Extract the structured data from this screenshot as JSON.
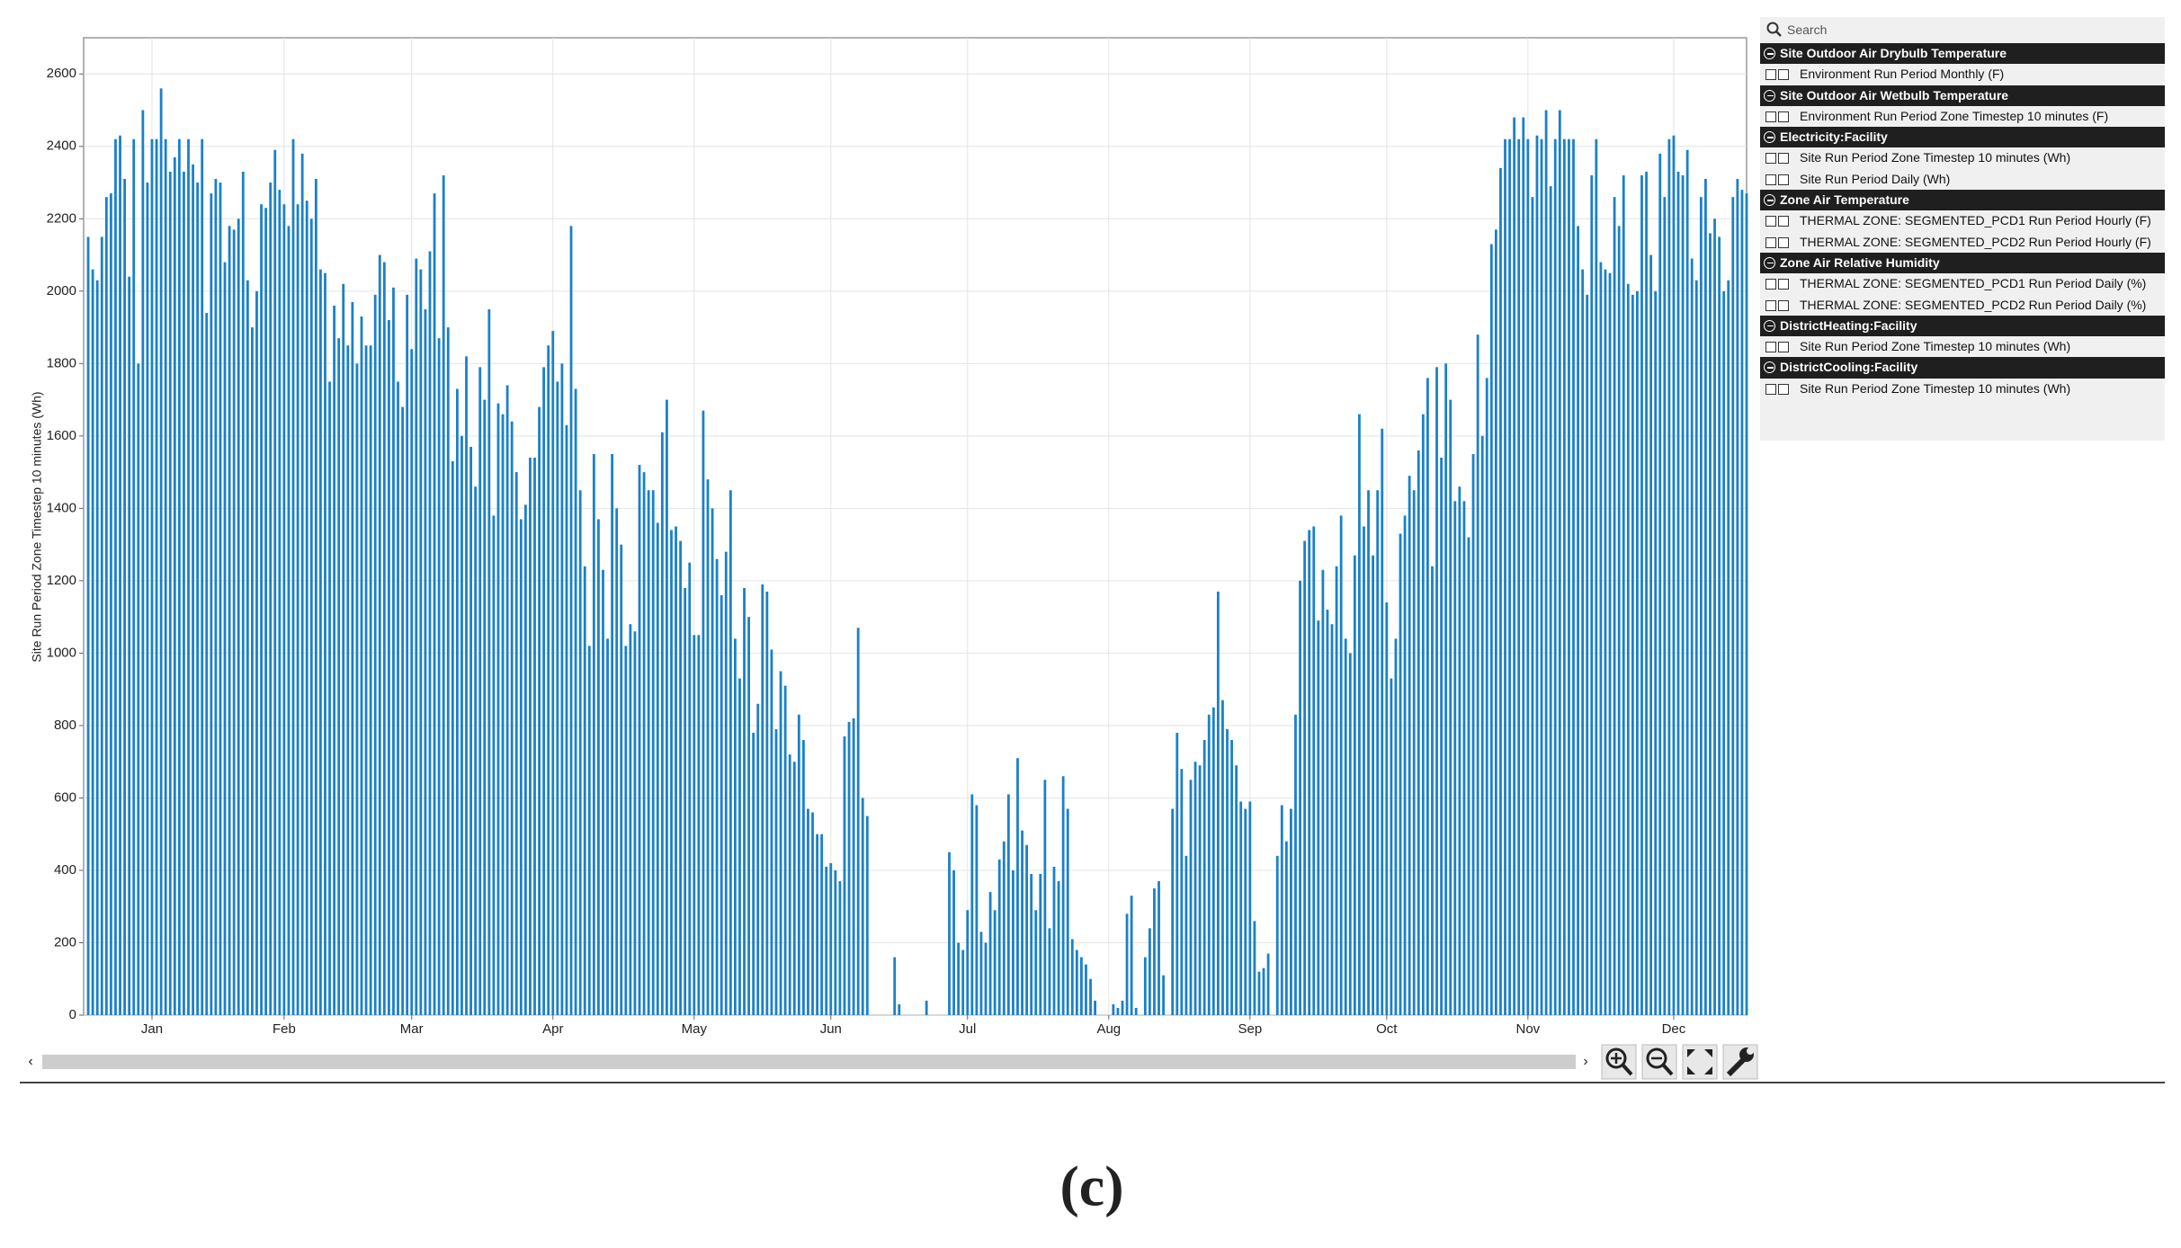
{
  "chart_data": {
    "type": "bar",
    "y_label": "Site Run Period Zone Timestep 10 minutes (Wh)",
    "color": "#1b80c8",
    "grid": true,
    "xlim": [
      0,
      365
    ],
    "ylim": [
      0,
      2700
    ],
    "xticks": [
      {
        "value": 15,
        "label": "Jan"
      },
      {
        "value": 44,
        "label": "Feb"
      },
      {
        "value": 72,
        "label": "Mar"
      },
      {
        "value": 103,
        "label": "Apr"
      },
      {
        "value": 134,
        "label": "May"
      },
      {
        "value": 164,
        "label": "Jun"
      },
      {
        "value": 194,
        "label": "Jul"
      },
      {
        "value": 225,
        "label": "Aug"
      },
      {
        "value": 256,
        "label": "Sep"
      },
      {
        "value": 286,
        "label": "Oct"
      },
      {
        "value": 317,
        "label": "Nov"
      },
      {
        "value": 349,
        "label": "Dec"
      }
    ],
    "yticks": [
      0,
      200,
      400,
      600,
      800,
      1000,
      1200,
      1400,
      1600,
      1800,
      2000,
      2200,
      2400,
      2600
    ],
    "x": [
      1,
      2,
      3,
      4,
      5,
      6,
      7,
      8,
      9,
      10,
      11,
      12,
      13,
      14,
      15,
      16,
      17,
      18,
      19,
      20,
      21,
      22,
      23,
      24,
      25,
      26,
      27,
      28,
      29,
      30,
      31,
      32,
      33,
      34,
      35,
      36,
      37,
      38,
      39,
      40,
      41,
      42,
      43,
      44,
      45,
      46,
      47,
      48,
      49,
      50,
      51,
      52,
      53,
      54,
      55,
      56,
      57,
      58,
      59,
      60,
      61,
      62,
      63,
      64,
      65,
      66,
      67,
      68,
      69,
      70,
      71,
      72,
      73,
      74,
      75,
      76,
      77,
      78,
      79,
      80,
      81,
      82,
      83,
      84,
      85,
      86,
      87,
      88,
      89,
      90,
      91,
      92,
      93,
      94,
      95,
      96,
      97,
      98,
      99,
      100,
      101,
      102,
      103,
      104,
      105,
      106,
      107,
      108,
      109,
      110,
      111,
      112,
      113,
      114,
      115,
      116,
      117,
      118,
      119,
      120,
      121,
      122,
      123,
      124,
      125,
      126,
      127,
      128,
      129,
      130,
      131,
      132,
      133,
      134,
      135,
      136,
      137,
      138,
      139,
      140,
      141,
      142,
      143,
      144,
      145,
      146,
      147,
      148,
      149,
      150,
      151,
      152,
      153,
      154,
      155,
      156,
      157,
      158,
      159,
      160,
      161,
      162,
      163,
      164,
      165,
      166,
      167,
      168,
      169,
      170,
      171,
      172,
      173,
      174,
      175,
      176,
      177,
      178,
      179,
      180,
      181,
      182,
      183,
      184,
      185,
      186,
      187,
      188,
      189,
      190,
      191,
      192,
      193,
      194,
      195,
      196,
      197,
      198,
      199,
      200,
      201,
      202,
      203,
      204,
      205,
      206,
      207,
      208,
      209,
      210,
      211,
      212,
      213,
      214,
      215,
      216,
      217,
      218,
      219,
      220,
      221,
      222,
      223,
      224,
      225,
      226,
      227,
      228,
      229,
      230,
      231,
      232,
      233,
      234,
      235,
      236,
      237,
      238,
      239,
      240,
      241,
      242,
      243,
      244,
      245,
      246,
      247,
      248,
      249,
      250,
      251,
      252,
      253,
      254,
      255,
      256,
      257,
      258,
      259,
      260,
      261,
      262,
      263,
      264,
      265,
      266,
      267,
      268,
      269,
      270,
      271,
      272,
      273,
      274,
      275,
      276,
      277,
      278,
      279,
      280,
      281,
      282,
      283,
      284,
      285,
      286,
      287,
      288,
      289,
      290,
      291,
      292,
      293,
      294,
      295,
      296,
      297,
      298,
      299,
      300,
      301,
      302,
      303,
      304,
      305,
      306,
      307,
      308,
      309,
      310,
      311,
      312,
      313,
      314,
      315,
      316,
      317,
      318,
      319,
      320,
      321,
      322,
      323,
      324,
      325,
      326,
      327,
      328,
      329,
      330,
      331,
      332,
      333,
      334,
      335,
      336,
      337,
      338,
      339,
      340,
      341,
      342,
      343,
      344,
      345,
      346,
      347,
      348,
      349,
      350,
      351,
      352,
      353,
      354,
      355,
      356,
      357,
      358,
      359,
      360,
      361,
      362,
      363,
      364,
      365
    ],
    "values": [
      2150,
      2060,
      2030,
      2150,
      2260,
      2270,
      2420,
      2430,
      2310,
      2040,
      2420,
      1800,
      2500,
      2300,
      2420,
      2420,
      2560,
      2420,
      2330,
      2370,
      2420,
      2330,
      2420,
      2350,
      2300,
      2420,
      1940,
      2270,
      2310,
      2300,
      2080,
      2180,
      2170,
      2200,
      2330,
      2030,
      1900,
      2000,
      2240,
      2230,
      2300,
      2390,
      2280,
      2240,
      2180,
      2420,
      2240,
      2380,
      2250,
      2200,
      2310,
      2060,
      2050,
      1750,
      1960,
      1870,
      2020,
      1850,
      1970,
      1800,
      1930,
      1850,
      1850,
      1990,
      2100,
      2080,
      1920,
      2010,
      1750,
      1680,
      1990,
      1840,
      2090,
      2060,
      1950,
      2110,
      2270,
      1870,
      2320,
      1900,
      1530,
      1730,
      1600,
      1820,
      1570,
      1460,
      1790,
      1700,
      1950,
      1380,
      1690,
      1660,
      1740,
      1640,
      1500,
      1370,
      1410,
      1540,
      1540,
      1680,
      1790,
      1850,
      1890,
      1750,
      1800,
      1630,
      2180,
      1730,
      1450,
      1240,
      1020,
      1550,
      1370,
      1230,
      1040,
      1550,
      1400,
      1300,
      1020,
      1080,
      1060,
      1520,
      1500,
      1450,
      1450,
      1360,
      1610,
      1700,
      1340,
      1350,
      1310,
      1180,
      1250,
      1050,
      1050,
      1670,
      1480,
      1400,
      1260,
      1160,
      1280,
      1450,
      1040,
      930,
      1180,
      1100,
      780,
      860,
      1190,
      1170,
      1010,
      790,
      950,
      910,
      720,
      700,
      830,
      760,
      570,
      560,
      500,
      500,
      410,
      420,
      400,
      370,
      770,
      810,
      820,
      1070,
      600,
      550,
      0,
      0,
      0,
      0,
      0,
      160,
      30,
      0,
      0,
      0,
      0,
      0,
      40,
      0,
      0,
      0,
      0,
      450,
      400,
      200,
      180,
      290,
      610,
      580,
      230,
      200,
      340,
      290,
      430,
      480,
      610,
      400,
      710,
      510,
      470,
      390,
      290,
      390,
      650,
      240,
      410,
      370,
      660,
      570,
      210,
      180,
      160,
      140,
      100,
      40,
      0,
      0,
      0,
      30,
      20,
      40,
      280,
      330,
      20,
      0,
      160,
      240,
      350,
      370,
      110,
      0,
      570,
      780,
      680,
      440,
      650,
      700,
      690,
      760,
      830,
      850,
      1170,
      870,
      790,
      760,
      690,
      590,
      570,
      590,
      260,
      120,
      130,
      170,
      0,
      440,
      580,
      480,
      570,
      830,
      1200,
      1310,
      1340,
      1350,
      1090,
      1230,
      1120,
      1080,
      1240,
      1380,
      1040,
      1000,
      1270,
      1660,
      1350,
      1450,
      1270,
      1450,
      1620,
      1140,
      930,
      1040,
      1330,
      1380,
      1490,
      1450,
      1560,
      1660,
      1760,
      1240,
      1790,
      1540,
      1800,
      1700,
      1420,
      1460,
      1420,
      1320,
      1550,
      1880,
      1600,
      1760,
      2130,
      2170,
      2340,
      2420,
      2420,
      2480,
      2420,
      2480,
      2420,
      2260,
      2430,
      2420,
      2500,
      2290,
      2420,
      2500,
      2420,
      2420,
      2420,
      2180,
      2060,
      1990,
      2320,
      2420,
      2080,
      2060,
      2050,
      2260,
      2180,
      2320,
      2020,
      1990,
      2000,
      2320,
      2330,
      2100,
      2000,
      2380,
      2260,
      2420,
      2430,
      2330,
      2320,
      2390,
      2090,
      2030,
      2260,
      2310,
      2160,
      2200,
      2150,
      2000,
      2030,
      2260,
      2310,
      2280,
      2270
    ]
  },
  "sidebar": {
    "search": "Search",
    "groups": [
      {
        "title": "Site Outdoor Air Drybulb Temperature",
        "items": [
          "Environment Run Period Monthly (F)"
        ]
      },
      {
        "title": "Site Outdoor Air Wetbulb Temperature",
        "items": [
          "Environment Run Period Zone Timestep 10 minutes (F)"
        ]
      },
      {
        "title": "Electricity:Facility",
        "items": [
          "Site Run Period Zone Timestep 10 minutes (Wh)",
          "Site Run Period Daily (Wh)"
        ]
      },
      {
        "title": "Zone Air Temperature",
        "items": [
          "THERMAL ZONE: SEGMENTED_PCD1 Run Period Hourly (F)",
          "THERMAL ZONE: SEGMENTED_PCD2 Run Period Hourly (F)"
        ]
      },
      {
        "title": "Zone Air Relative Humidity",
        "items": [
          "THERMAL ZONE: SEGMENTED_PCD1 Run Period Daily (%)",
          "THERMAL ZONE: SEGMENTED_PCD2 Run Period Daily (%)"
        ]
      },
      {
        "title": "DistrictHeating:Facility",
        "items": [
          "Site Run Period Zone Timestep 10 minutes (Wh)"
        ]
      },
      {
        "title": "DistrictCooling:Facility",
        "items": [
          "Site Run Period Zone Timestep 10 minutes (Wh)"
        ]
      }
    ]
  },
  "caption": "(c)"
}
